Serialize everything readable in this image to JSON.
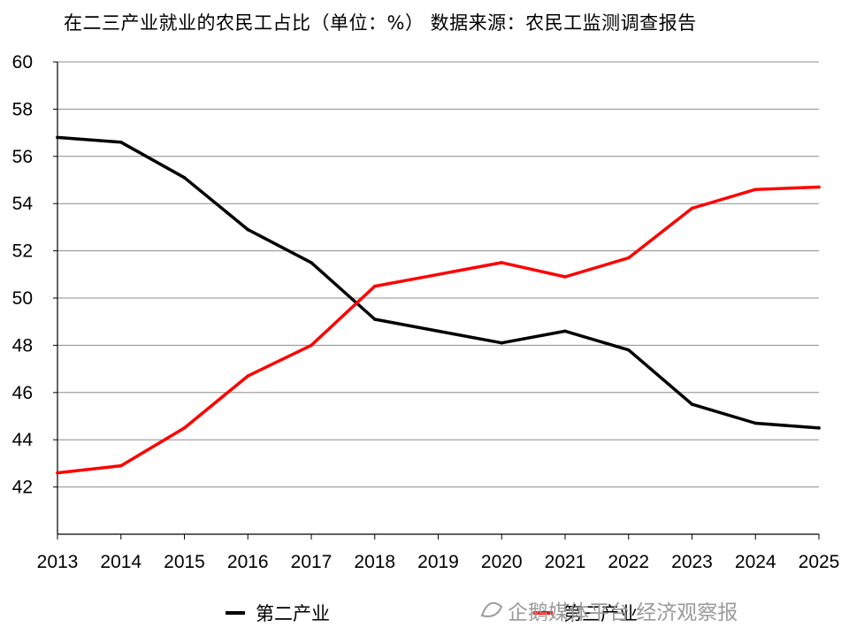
{
  "title": "在二三产业就业的农民工占比（单位：%） 数据来源：农民工监测调查报告",
  "watermark": "企鹅媒体平台 经济观察报",
  "chart_data": {
    "type": "line",
    "title": "在二三产业就业的农民工占比（单位：%） 数据来源：农民工监测调查报告",
    "x": [
      "2013",
      "2014",
      "2015",
      "2016",
      "2017",
      "2018",
      "2019",
      "2020",
      "2021",
      "2022",
      "2023",
      "2024",
      "2025"
    ],
    "series": [
      {
        "name": "第二产业",
        "color": "#000000",
        "values": [
          56.8,
          56.6,
          55.1,
          52.9,
          51.5,
          49.1,
          48.6,
          48.1,
          48.6,
          47.8,
          45.5,
          44.7,
          44.5
        ]
      },
      {
        "name": "第三产业",
        "color": "#ff0000",
        "values": [
          42.6,
          42.9,
          44.5,
          46.7,
          48.0,
          50.5,
          51.0,
          51.5,
          50.9,
          51.7,
          53.8,
          54.6,
          54.7
        ]
      }
    ],
    "yticks": [
      42,
      44,
      46,
      48,
      50,
      52,
      54,
      56,
      58,
      60
    ],
    "ylim": [
      40,
      60
    ],
    "grid": true,
    "legend": "bottom"
  }
}
